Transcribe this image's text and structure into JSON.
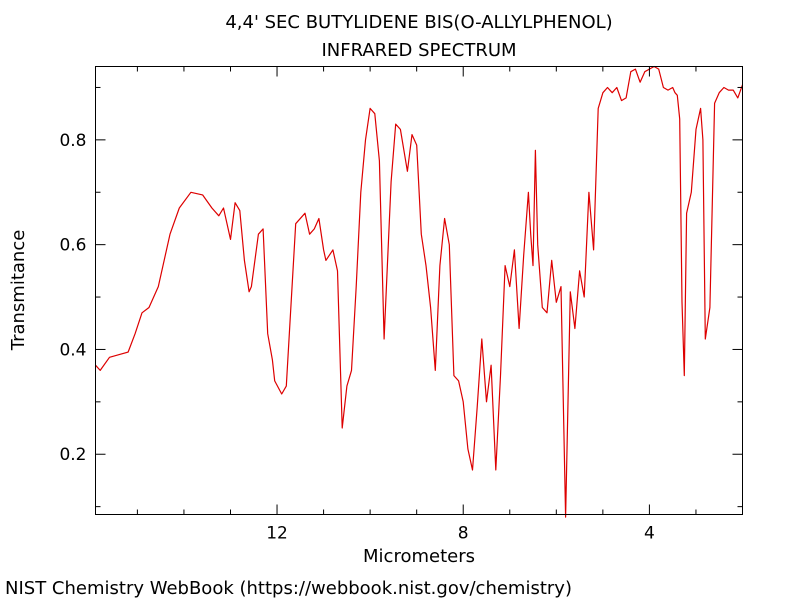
{
  "chart_data": {
    "type": "line",
    "title": "4,4' SEC BUTYLIDENE BIS(O-ALLYLPHENOL)",
    "subtitle": "INFRARED SPECTRUM",
    "xlabel": "Micrometers",
    "ylabel": "Transmitance",
    "xlim": [
      15.9,
      2.0
    ],
    "ylim": [
      0.085,
      0.94
    ],
    "x_reversed": true,
    "grid": false,
    "legend": "none",
    "line_color": "#dd0000",
    "x_ticks": [
      {
        "value": 12,
        "label": "12"
      },
      {
        "value": 8,
        "label": "8"
      },
      {
        "value": 4,
        "label": "4"
      }
    ],
    "x_minor_ticks": [
      15,
      14,
      13,
      11,
      10,
      9,
      7,
      6,
      5,
      3
    ],
    "y_ticks": [
      {
        "value": 0.2,
        "label": "0.2"
      },
      {
        "value": 0.4,
        "label": "0.4"
      },
      {
        "value": 0.6,
        "label": "0.6"
      },
      {
        "value": 0.8,
        "label": "0.8"
      }
    ],
    "y_minor_ticks": [
      0.1,
      0.3,
      0.5,
      0.7,
      0.9
    ],
    "series": [
      {
        "x": [
          15.9,
          15.8,
          15.6,
          15.4,
          15.2,
          15.05,
          14.9,
          14.75,
          14.55,
          14.3,
          14.1,
          13.85,
          13.6,
          13.4,
          13.25,
          13.15,
          13.0,
          12.9,
          12.8,
          12.7,
          12.6,
          12.55,
          12.4,
          12.3,
          12.2,
          12.1,
          12.05,
          11.9,
          11.8,
          11.6,
          11.4,
          11.3,
          11.2,
          11.1,
          11.0,
          10.95,
          10.8,
          10.7,
          10.6,
          10.5,
          10.4,
          10.3,
          10.2,
          10.1,
          10.0,
          9.9,
          9.8,
          9.7,
          9.55,
          9.45,
          9.35,
          9.2,
          9.1,
          9.0,
          8.9,
          8.8,
          8.7,
          8.6,
          8.5,
          8.4,
          8.3,
          8.2,
          8.1,
          8.0,
          7.9,
          7.8,
          7.7,
          7.6,
          7.5,
          7.4,
          7.3,
          7.2,
          7.1,
          7.0,
          6.9,
          6.8,
          6.7,
          6.6,
          6.55,
          6.5,
          6.45,
          6.4,
          6.3,
          6.2,
          6.1,
          6.0,
          5.9,
          5.8,
          5.7,
          5.6,
          5.5,
          5.4,
          5.3,
          5.2,
          5.1,
          5.0,
          4.9,
          4.8,
          4.7,
          4.6,
          4.5,
          4.4,
          4.3,
          4.2,
          4.1,
          4.0,
          3.9,
          3.8,
          3.7,
          3.6,
          3.5,
          3.45,
          3.4,
          3.35,
          3.3,
          3.25,
          3.2,
          3.1,
          3.0,
          2.9,
          2.85,
          2.8,
          2.7,
          2.6,
          2.5,
          2.4,
          2.3,
          2.2,
          2.1,
          2.0
        ],
        "y": [
          0.37,
          0.36,
          0.385,
          0.39,
          0.395,
          0.43,
          0.47,
          0.48,
          0.52,
          0.62,
          0.67,
          0.7,
          0.695,
          0.67,
          0.655,
          0.67,
          0.61,
          0.68,
          0.665,
          0.57,
          0.51,
          0.52,
          0.62,
          0.63,
          0.43,
          0.38,
          0.34,
          0.315,
          0.33,
          0.64,
          0.66,
          0.62,
          0.63,
          0.65,
          0.59,
          0.57,
          0.59,
          0.55,
          0.25,
          0.33,
          0.36,
          0.52,
          0.7,
          0.8,
          0.86,
          0.85,
          0.76,
          0.42,
          0.72,
          0.83,
          0.82,
          0.74,
          0.81,
          0.79,
          0.62,
          0.56,
          0.48,
          0.36,
          0.56,
          0.65,
          0.6,
          0.35,
          0.34,
          0.3,
          0.21,
          0.17,
          0.29,
          0.42,
          0.3,
          0.37,
          0.17,
          0.35,
          0.56,
          0.52,
          0.59,
          0.44,
          0.58,
          0.7,
          0.62,
          0.56,
          0.78,
          0.6,
          0.48,
          0.47,
          0.57,
          0.49,
          0.52,
          0.08,
          0.51,
          0.44,
          0.55,
          0.5,
          0.7,
          0.59,
          0.86,
          0.89,
          0.9,
          0.89,
          0.9,
          0.875,
          0.88,
          0.93,
          0.935,
          0.91,
          0.93,
          0.935,
          0.94,
          0.935,
          0.9,
          0.895,
          0.9,
          0.89,
          0.885,
          0.84,
          0.49,
          0.35,
          0.66,
          0.7,
          0.82,
          0.86,
          0.8,
          0.42,
          0.48,
          0.87,
          0.89,
          0.9,
          0.895,
          0.895,
          0.88,
          0.905
        ]
      }
    ]
  },
  "credit": "NIST Chemistry WebBook (https://webbook.nist.gov/chemistry)"
}
